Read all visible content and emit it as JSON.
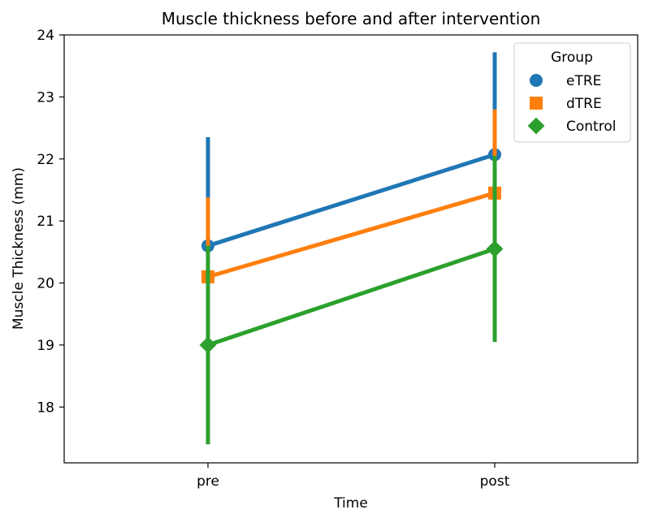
{
  "chart_data": {
    "type": "line",
    "title": "Muscle thickness before and after intervention",
    "xlabel": "Time",
    "ylabel": "Muscle Thickness (mm)",
    "categories": [
      "pre",
      "post"
    ],
    "ylim": [
      17.1,
      24.0
    ],
    "yticks": [
      18,
      19,
      20,
      21,
      22,
      23,
      24
    ],
    "grid": false,
    "legend": {
      "title": "Group",
      "placement": "top-right"
    },
    "series": [
      {
        "name": "eTRE",
        "color": "#1f77b4",
        "marker": "circle",
        "values": [
          20.6,
          22.07
        ],
        "error_low": [
          19.0,
          20.7
        ],
        "error_high": [
          22.35,
          23.72
        ]
      },
      {
        "name": "dTRE",
        "color": "#ff7f0e",
        "marker": "square",
        "values": [
          20.1,
          21.45
        ],
        "error_low": [
          18.8,
          20.1
        ],
        "error_high": [
          21.38,
          22.8
        ]
      },
      {
        "name": "Control",
        "color": "#2ca02c",
        "marker": "diamond",
        "values": [
          19.0,
          20.55
        ],
        "error_low": [
          17.4,
          19.05
        ],
        "error_high": [
          20.6,
          22.05
        ]
      }
    ]
  }
}
